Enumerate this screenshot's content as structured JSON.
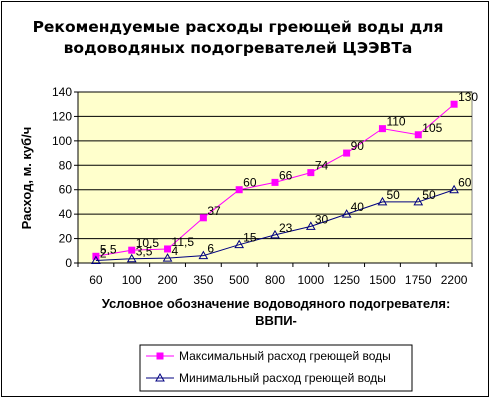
{
  "chart_data": {
    "type": "line",
    "title_line1": "Рекомендуемые расходы греющей воды для",
    "title_line2": "водоводяных подогревателей ЦЭЭВТа",
    "ylabel": "Расход, м. куб/ч",
    "xlabel_line1": "Условное обозначение водоводяного подогревателя:",
    "xlabel_line2": "ВВПИ-",
    "ylim": [
      0,
      140
    ],
    "yticks": [
      0,
      20,
      40,
      60,
      80,
      100,
      120,
      140
    ],
    "grid": true,
    "plot_background": "#ffffcc",
    "categories": [
      "60",
      "100",
      "200",
      "350",
      "500",
      "800",
      "1000",
      "1250",
      "1500",
      "1750",
      "2200"
    ],
    "series": [
      {
        "name": "Максимальный расход греющей воды",
        "color": "#ff00ff",
        "marker": "square",
        "values": [
          5.5,
          10.5,
          11.5,
          37,
          60,
          66,
          74,
          90,
          110,
          105,
          130
        ],
        "labels": [
          "5,5",
          "10,5",
          "11,5",
          "37",
          "60",
          "66",
          "74",
          "90",
          "110",
          "105",
          "130"
        ]
      },
      {
        "name": "Минимальный расход греющей воды",
        "color": "#000080",
        "marker": "triangle",
        "values": [
          2,
          3.5,
          4,
          6,
          15,
          23,
          30,
          40,
          50,
          50,
          60
        ],
        "labels": [
          "2",
          "3,5",
          "4",
          "6",
          "15",
          "23",
          "30",
          "40",
          "50",
          "50",
          "60"
        ]
      }
    ],
    "legend_position": "bottom-right"
  }
}
